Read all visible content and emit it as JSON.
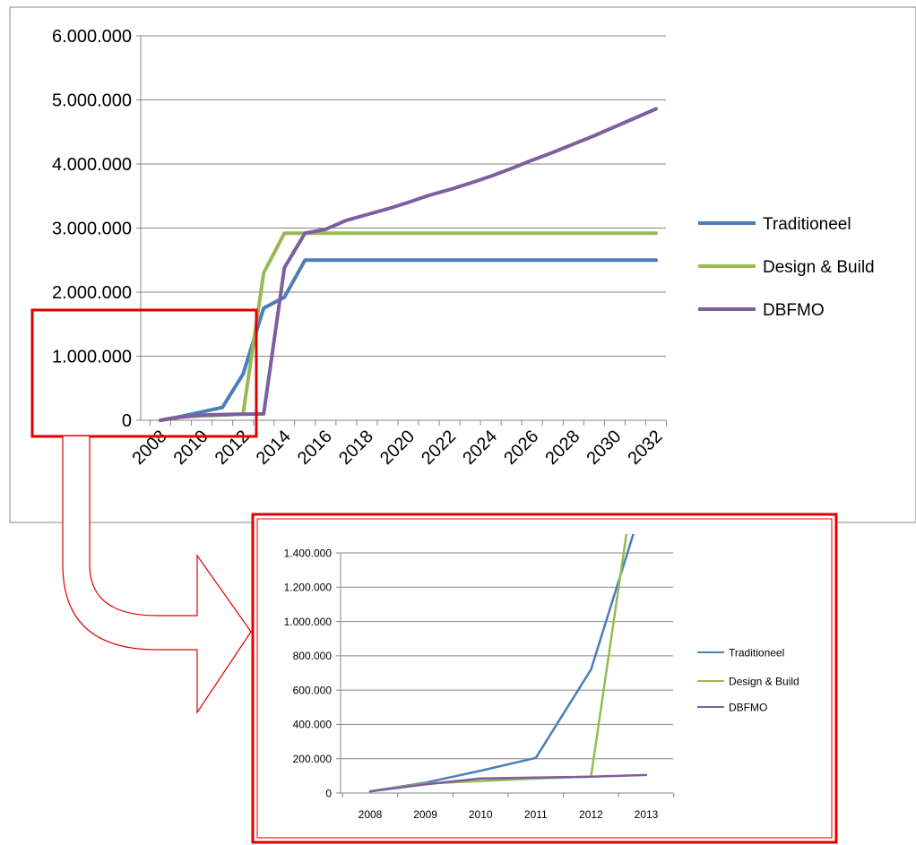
{
  "chart_data": [
    {
      "type": "line",
      "title": "",
      "xlabel": "",
      "ylabel": "",
      "x": [
        2008,
        2009,
        2010,
        2011,
        2012,
        2013,
        2014,
        2015,
        2016,
        2017,
        2018,
        2019,
        2020,
        2021,
        2022,
        2023,
        2024,
        2025,
        2026,
        2027,
        2028,
        2029,
        2030,
        2031,
        2032
      ],
      "x_tick_labels": [
        "2008",
        "2010",
        "2012",
        "2014",
        "2016",
        "2018",
        "2020",
        "2022",
        "2024",
        "2026",
        "2028",
        "2030",
        "2032"
      ],
      "y_tick_labels": [
        "0",
        "1.000.000",
        "2.000.000",
        "3.000.000",
        "4.000.000",
        "5.000.000",
        "6.000.000"
      ],
      "ylim": [
        0,
        6000000
      ],
      "grid": true,
      "legend_position": "right",
      "series": [
        {
          "name": "Traditioneel",
          "color": "#4a7ebb",
          "values": [
            0,
            60000,
            130000,
            200000,
            720000,
            1750000,
            1920000,
            2500000,
            2500000,
            2500000,
            2500000,
            2500000,
            2500000,
            2500000,
            2500000,
            2500000,
            2500000,
            2500000,
            2500000,
            2500000,
            2500000,
            2500000,
            2500000,
            2500000,
            2500000
          ]
        },
        {
          "name": "Design & Build",
          "color": "#98b954",
          "values": [
            0,
            50000,
            70000,
            80000,
            100000,
            2300000,
            2920000,
            2920000,
            2920000,
            2920000,
            2920000,
            2920000,
            2920000,
            2920000,
            2920000,
            2920000,
            2920000,
            2920000,
            2920000,
            2920000,
            2920000,
            2920000,
            2920000,
            2920000,
            2920000
          ]
        },
        {
          "name": "DBFMO",
          "color": "#7d5fa0",
          "values": [
            0,
            50000,
            80000,
            90000,
            95000,
            100000,
            2380000,
            2920000,
            2980000,
            3120000,
            3210000,
            3300000,
            3400000,
            3510000,
            3600000,
            3700000,
            3810000,
            3930000,
            4060000,
            4180000,
            4310000,
            4440000,
            4580000,
            4720000,
            4860000
          ]
        }
      ]
    },
    {
      "type": "line",
      "title": "",
      "xlabel": "",
      "ylabel": "",
      "x": [
        2008,
        2009,
        2010,
        2011,
        2012,
        2013
      ],
      "x_tick_labels": [
        "2008",
        "2009",
        "2010",
        "2011",
        "2012",
        "2013"
      ],
      "y_tick_labels": [
        "0",
        "200.000",
        "400.000",
        "600.000",
        "800.000",
        "1.000.000",
        "1.200.000",
        "1.400.000"
      ],
      "ylim": [
        0,
        1500000
      ],
      "grid": true,
      "legend_position": "right",
      "series": [
        {
          "name": "Traditioneel",
          "color": "#4a7ebb",
          "values": [
            10000,
            60000,
            130000,
            205000,
            720000,
            1750000
          ]
        },
        {
          "name": "Design & Build",
          "color": "#98b954",
          "values": [
            10000,
            55000,
            70000,
            85000,
            95000,
            2300000
          ]
        },
        {
          "name": "DBFMO",
          "color": "#7d5fa0",
          "values": [
            10000,
            50000,
            85000,
            90000,
            95000,
            105000
          ]
        }
      ]
    }
  ]
}
